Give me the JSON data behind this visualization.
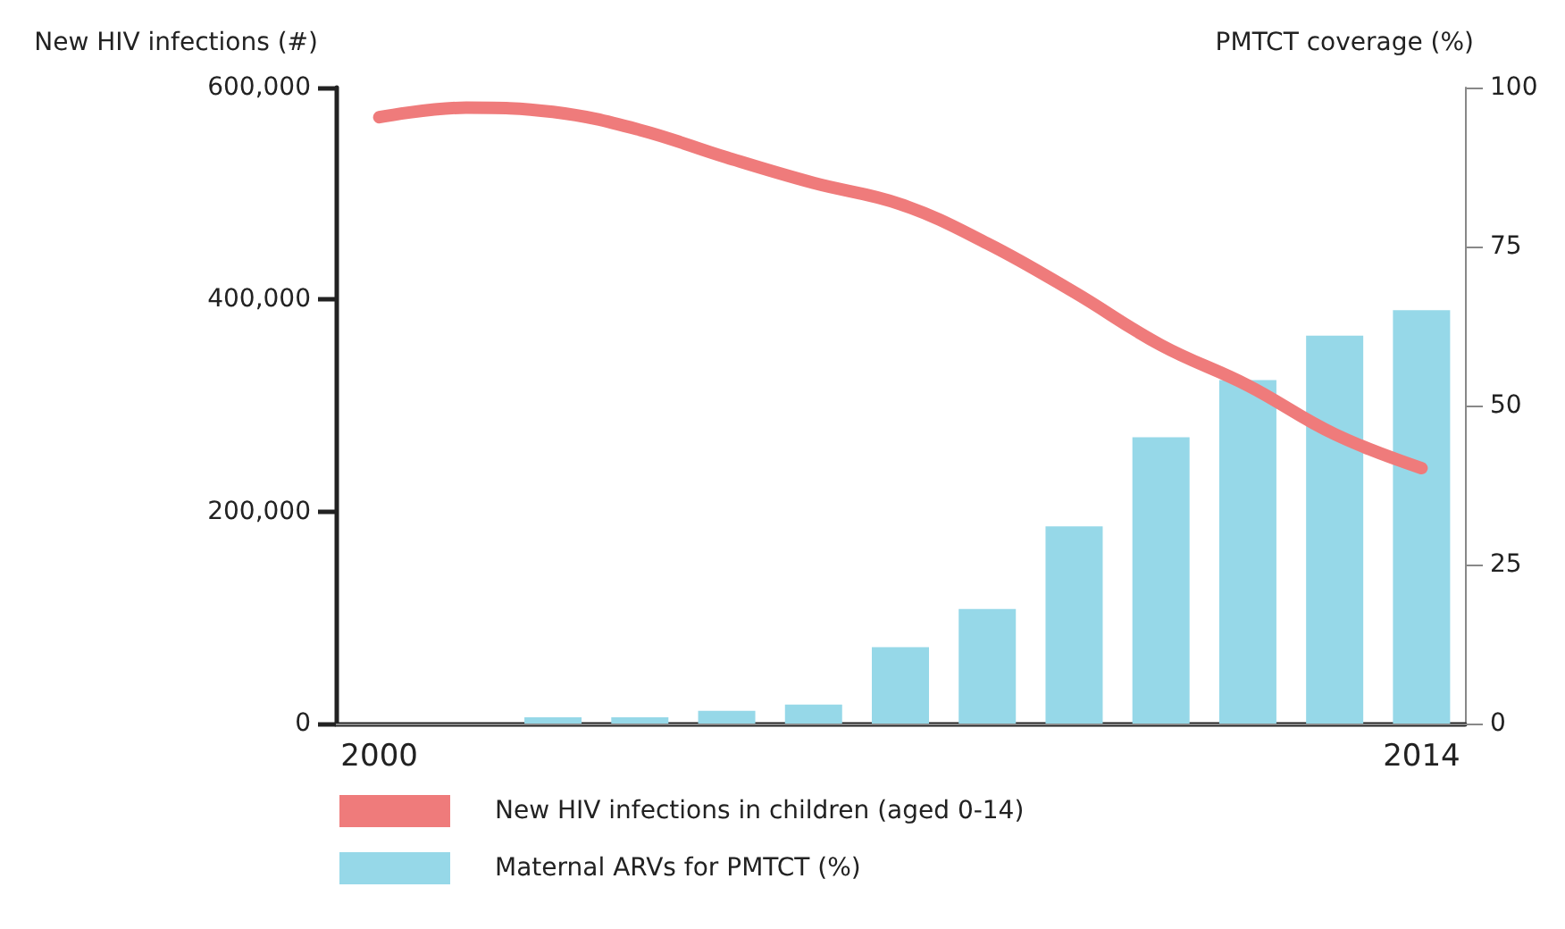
{
  "chart_data": {
    "type": "bar",
    "ylabel": "New HIV infections (#)",
    "y2label": "PMTCT coverage (%)",
    "categories": [
      "2000",
      null,
      null,
      null,
      null,
      null,
      null,
      null,
      null,
      null,
      null,
      null,
      "2014"
    ],
    "series": [
      {
        "name": "New HIV infections in children (aged 0-14)",
        "type": "line",
        "color": "#ef7b7b",
        "values": [
          572000,
          581000,
          577000,
          560000,
          534000,
          510000,
          490000,
          453000,
          407000,
          357000,
          319000,
          273000,
          241000
        ]
      },
      {
        "name": "Maternal ARVs for PMTCT (%)",
        "axis": "y2",
        "color": "#96d8e8",
        "values": [
          null,
          null,
          1,
          1,
          2,
          3,
          12,
          18,
          31,
          45,
          54,
          61,
          65
        ]
      }
    ],
    "ylim": [
      0,
      600000
    ],
    "yticks": [
      {
        "value": 0,
        "label": "0"
      },
      {
        "value": 200000,
        "label": "200,000"
      },
      {
        "value": 400000,
        "label": "400,000"
      },
      {
        "value": 600000,
        "label": "600,000"
      }
    ],
    "y2lim": [
      0,
      100
    ],
    "y2ticks": [
      0,
      25,
      50,
      75,
      100
    ],
    "grid": false,
    "legend": "bottom",
    "line_style": "solid"
  }
}
